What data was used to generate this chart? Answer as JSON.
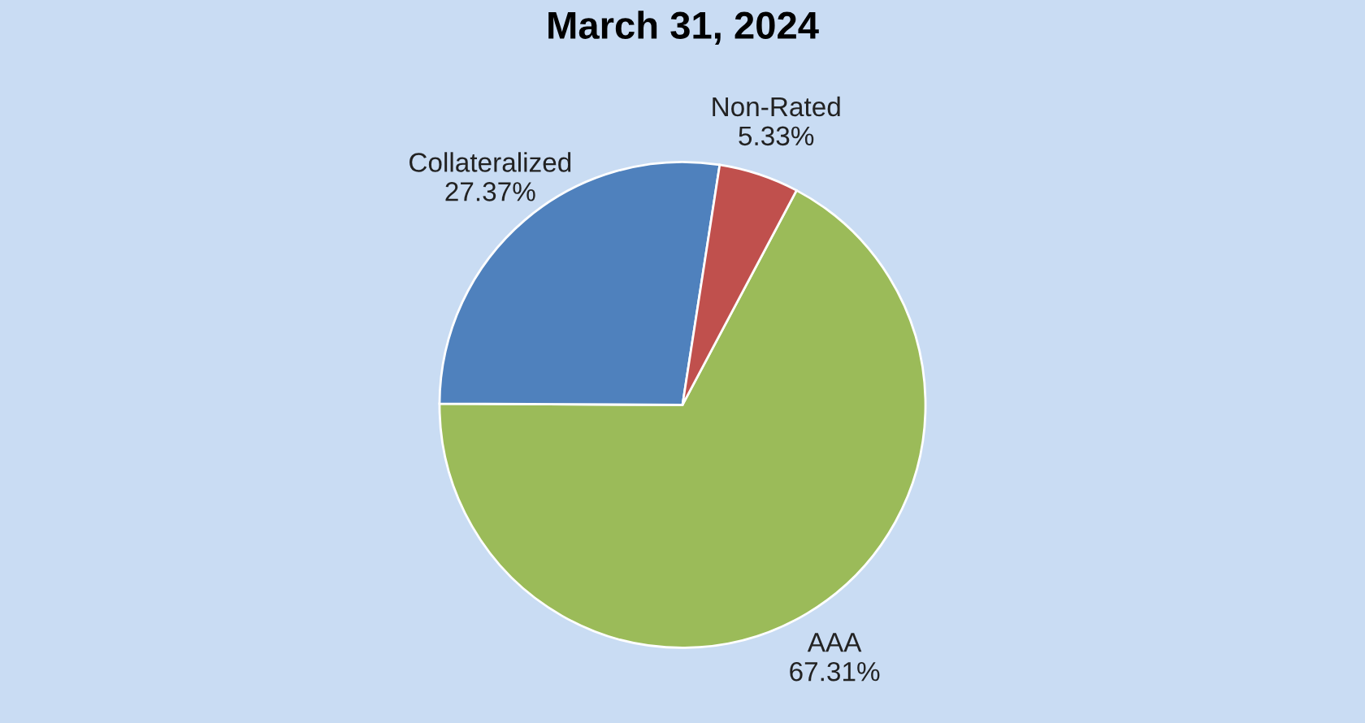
{
  "chart_data": {
    "type": "pie",
    "title": "March 31, 2024",
    "categories": [
      "AAA",
      "Collateralized",
      "Non-Rated"
    ],
    "values": [
      67.31,
      27.37,
      5.33
    ],
    "colors": [
      "#9bbb59",
      "#4f81bd",
      "#c0504d"
    ],
    "value_labels": [
      "67.31%",
      "27.37%",
      "5.33%"
    ],
    "legend": false
  }
}
